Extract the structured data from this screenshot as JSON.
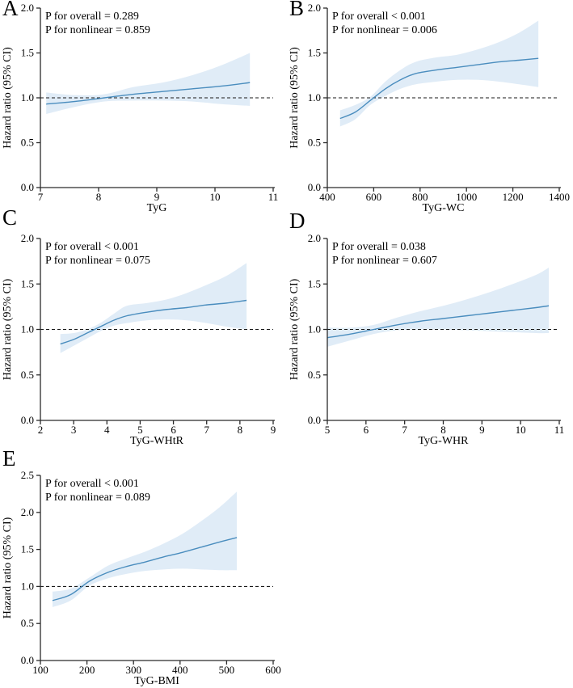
{
  "colors": {
    "curve": "#4a8dbe",
    "ci_band": "#e0ecf7",
    "reference_line": "#1a1a1a",
    "axis": "#2b2b2b",
    "text": "#000000"
  },
  "chart_data": [
    {
      "panel_label": "A",
      "type": "line",
      "annotations": {
        "p_overall": "P for overall = 0.289",
        "p_nonlinear": "P for nonlinear = 0.859"
      },
      "xlabel": "TyG",
      "ylabel": "Hazard ratio (95% CI)",
      "xlim": [
        7,
        11
      ],
      "xtick_values": [
        7,
        8,
        9,
        10,
        11
      ],
      "xtick_labels": [
        "7",
        "8",
        "9",
        "10",
        "11"
      ],
      "ylim": [
        0,
        2.0
      ],
      "ytick_values": [
        0,
        0.5,
        1.0,
        1.5,
        2.0
      ],
      "ytick_labels": [
        "0.0",
        "0.5",
        "1.0",
        "1.5",
        "2.0"
      ],
      "reference_line_y": 1.0,
      "x": [
        7.1,
        7.6,
        8.1,
        8.6,
        9.1,
        9.6,
        10.1,
        10.6
      ],
      "hr": [
        0.93,
        0.96,
        1.0,
        1.04,
        1.07,
        1.1,
        1.13,
        1.17
      ],
      "ci_lower": [
        0.82,
        0.9,
        0.96,
        0.97,
        0.97,
        0.96,
        0.93,
        0.91
      ],
      "ci_upper": [
        1.06,
        1.03,
        1.04,
        1.12,
        1.17,
        1.25,
        1.36,
        1.5
      ]
    },
    {
      "panel_label": "B",
      "type": "line",
      "annotations": {
        "p_overall": "P for overall < 0.001",
        "p_nonlinear": "P for nonlinear = 0.006"
      },
      "xlabel": "TyG-WC",
      "ylabel": "Hazard ratio (95% CI)",
      "xlim": [
        400,
        1400
      ],
      "xtick_values": [
        400,
        600,
        800,
        1000,
        1200,
        1400
      ],
      "xtick_labels": [
        "400",
        "600",
        "800",
        "1000",
        "1200",
        "1400"
      ],
      "ylim": [
        0,
        2.0
      ],
      "ytick_values": [
        0,
        0.5,
        1.0,
        1.5,
        2.0
      ],
      "ytick_labels": [
        "0.0",
        "0.5",
        "1.0",
        "1.5",
        "2.0"
      ],
      "reference_line_y": 1.0,
      "x": [
        455,
        520,
        585,
        650,
        715,
        780,
        870,
        960,
        1050,
        1140,
        1230,
        1310
      ],
      "hr": [
        0.77,
        0.84,
        0.97,
        1.1,
        1.2,
        1.27,
        1.31,
        1.34,
        1.37,
        1.4,
        1.42,
        1.44
      ],
      "ci_lower": [
        0.68,
        0.76,
        0.92,
        1.02,
        1.1,
        1.15,
        1.18,
        1.2,
        1.2,
        1.18,
        1.15,
        1.12
      ],
      "ci_upper": [
        0.86,
        0.92,
        1.01,
        1.18,
        1.31,
        1.4,
        1.45,
        1.48,
        1.54,
        1.62,
        1.73,
        1.86
      ]
    },
    {
      "panel_label": "C",
      "type": "line",
      "annotations": {
        "p_overall": "P for overall < 0.001",
        "p_nonlinear": "P for nonlinear = 0.075"
      },
      "xlabel": "TyG-WHtR",
      "ylabel": "Hazard ratio (95% CI)",
      "xlim": [
        2,
        9
      ],
      "xtick_values": [
        2,
        3,
        4,
        5,
        6,
        7,
        8,
        9
      ],
      "xtick_labels": [
        "2",
        "3",
        "4",
        "5",
        "6",
        "7",
        "8",
        "9"
      ],
      "ylim": [
        0,
        2.0
      ],
      "ytick_values": [
        0,
        0.5,
        1.0,
        1.5,
        2.0
      ],
      "ytick_labels": [
        "0.0",
        "0.5",
        "1.0",
        "1.5",
        "2.0"
      ],
      "reference_line_y": 1.0,
      "x": [
        2.6,
        3.0,
        3.4,
        3.8,
        4.2,
        4.6,
        5.2,
        5.8,
        6.4,
        7.0,
        7.6,
        8.2
      ],
      "hr": [
        0.84,
        0.89,
        0.96,
        1.03,
        1.1,
        1.15,
        1.19,
        1.22,
        1.24,
        1.27,
        1.29,
        1.32
      ],
      "ci_lower": [
        0.74,
        0.82,
        0.9,
        0.98,
        1.04,
        1.07,
        1.1,
        1.11,
        1.1,
        1.07,
        1.03,
        1.0
      ],
      "ci_upper": [
        0.95,
        0.96,
        1.0,
        1.07,
        1.17,
        1.26,
        1.29,
        1.33,
        1.4,
        1.49,
        1.59,
        1.73
      ]
    },
    {
      "panel_label": "D",
      "type": "line",
      "annotations": {
        "p_overall": "P for overall = 0.038",
        "p_nonlinear": "P for nonlinear = 0.607"
      },
      "xlabel": "TyG-WHR",
      "ylabel": "Hazard ratio (95% CI)",
      "xlim": [
        5,
        11
      ],
      "xtick_values": [
        5,
        6,
        7,
        8,
        9,
        10,
        11
      ],
      "xtick_labels": [
        "5",
        "6",
        "7",
        "8",
        "9",
        "10",
        "11"
      ],
      "ylim": [
        0,
        2.0
      ],
      "ytick_values": [
        0,
        0.5,
        1.0,
        1.5,
        2.0
      ],
      "ytick_labels": [
        "0.0",
        "0.5",
        "1.0",
        "1.5",
        "2.0"
      ],
      "reference_line_y": 1.0,
      "x": [
        5.0,
        5.6,
        6.2,
        6.8,
        7.4,
        8.0,
        8.6,
        9.2,
        9.8,
        10.4,
        10.73
      ],
      "hr": [
        0.91,
        0.95,
        1.0,
        1.05,
        1.09,
        1.12,
        1.15,
        1.18,
        1.21,
        1.24,
        1.26
      ],
      "ci_lower": [
        0.81,
        0.88,
        0.95,
        0.99,
        1.0,
        1.0,
        0.99,
        0.98,
        0.97,
        0.96,
        0.96
      ],
      "ci_upper": [
        1.02,
        1.02,
        1.05,
        1.13,
        1.2,
        1.26,
        1.33,
        1.41,
        1.5,
        1.6,
        1.68
      ]
    },
    {
      "panel_label": "E",
      "type": "line",
      "annotations": {
        "p_overall": "P for overall < 0.001",
        "p_nonlinear": "P for nonlinear = 0.089"
      },
      "xlabel": "TyG-BMI",
      "ylabel": "Hazard ratio (95% CI)",
      "xlim": [
        100,
        600
      ],
      "xtick_values": [
        100,
        200,
        300,
        400,
        500,
        600
      ],
      "xtick_labels": [
        "100",
        "200",
        "300",
        "400",
        "500",
        "600"
      ],
      "ylim": [
        0,
        2.5
      ],
      "ytick_values": [
        0,
        0.5,
        1.0,
        1.5,
        2.0,
        2.5
      ],
      "ytick_labels": [
        "0.0",
        "0.5",
        "1.0",
        "1.5",
        "2.0",
        "2.5"
      ],
      "reference_line_y": 1.0,
      "x": [
        126,
        165,
        205,
        245,
        285,
        325,
        365,
        405,
        445,
        485,
        522
      ],
      "hr": [
        0.81,
        0.89,
        1.07,
        1.19,
        1.27,
        1.33,
        1.4,
        1.46,
        1.53,
        1.6,
        1.66
      ],
      "ci_lower": [
        0.72,
        0.81,
        1.01,
        1.11,
        1.17,
        1.21,
        1.23,
        1.24,
        1.23,
        1.22,
        1.22
      ],
      "ci_upper": [
        0.93,
        0.97,
        1.12,
        1.28,
        1.38,
        1.47,
        1.58,
        1.71,
        1.88,
        2.07,
        2.28
      ]
    }
  ]
}
